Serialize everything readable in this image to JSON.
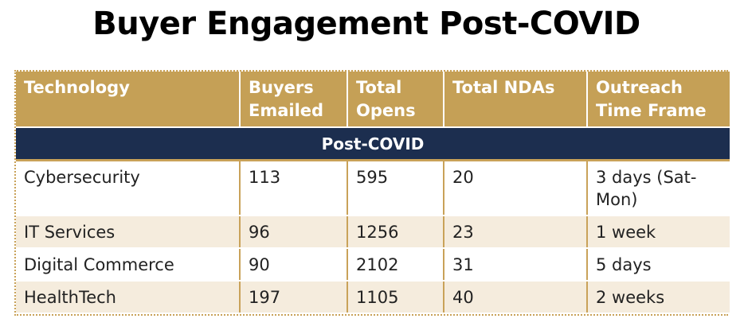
{
  "title": "Buyer Engagement Post-COVID",
  "table": {
    "headers": [
      "Technology",
      "Buyers Emailed",
      "Total Opens",
      "Total NDAs",
      "Outreach Time Frame"
    ],
    "section_label": "Post-COVID",
    "rows": [
      [
        "Cybersecurity",
        "113",
        "595",
        "20",
        "3 days (Sat-Mon)"
      ],
      [
        "IT Services",
        "96",
        "1256",
        "23",
        "1 week"
      ],
      [
        "Digital Commerce",
        "90",
        "2102",
        "31",
        "5 days"
      ],
      [
        "HealthTech",
        "197",
        "1105",
        "40",
        "2 weeks"
      ]
    ]
  },
  "colors": {
    "header_gold": "#c5a056",
    "section_navy": "#1c2e4f",
    "row_alt_beige": "#f5ecdd",
    "border_gold": "#c9a259"
  }
}
